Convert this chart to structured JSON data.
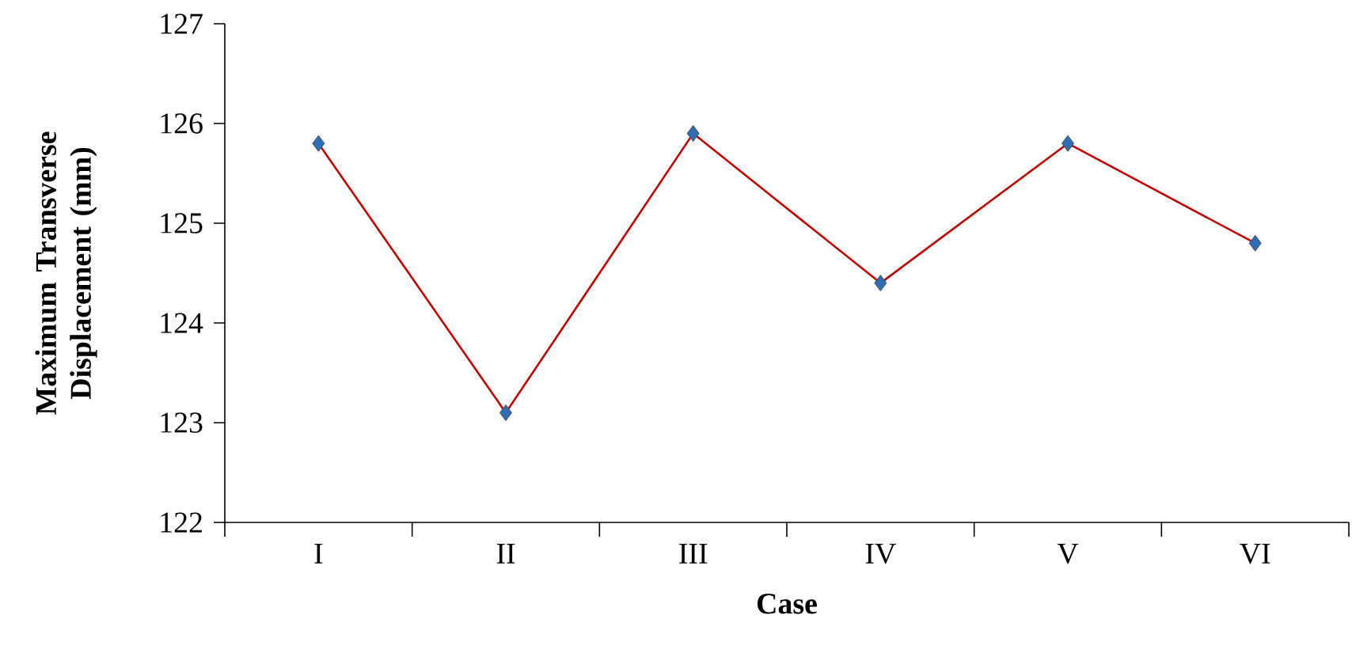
{
  "chart_data": {
    "type": "line",
    "xlabel": "Case",
    "ylabel": "Maximum Transverse Displacement (mm)",
    "categories": [
      "I",
      "II",
      "III",
      "IV",
      "V",
      "VI"
    ],
    "series": [
      {
        "color": "#c00000",
        "values": [
          125.8,
          123.1,
          125.9,
          124.4,
          125.8,
          124.8
        ]
      }
    ],
    "ylim": [
      122,
      127
    ],
    "yticks": [
      122,
      123,
      124,
      125,
      126,
      127
    ],
    "grid": false,
    "marker": "diamond",
    "line_style": "solid"
  }
}
